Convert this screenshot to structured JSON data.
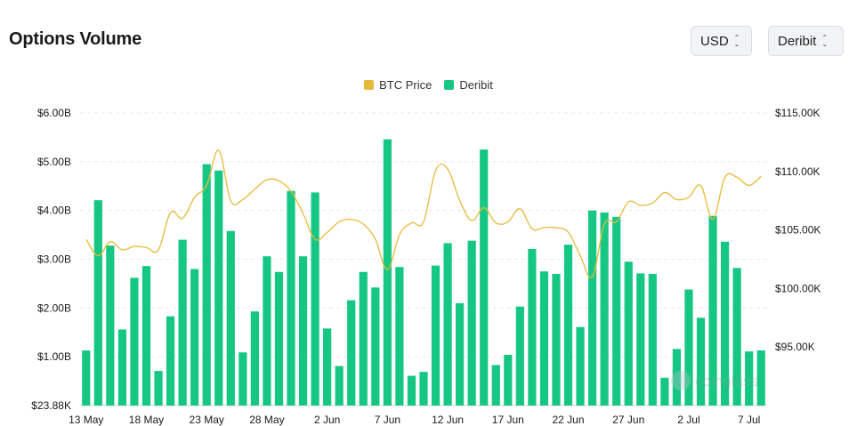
{
  "header": {
    "title": "Options Volume",
    "currency_select": "USD",
    "exchange_select": "Deribit"
  },
  "colors": {
    "bar": "#16c784",
    "line": "#e7b93a",
    "grid": "#e6e8eb",
    "axis_text": "#1a1a1a"
  },
  "watermark": "coinglass",
  "chart_data": {
    "type": "bar",
    "legend": [
      {
        "name": "BTC Price",
        "color": "#e7b93a"
      },
      {
        "name": "Deribit",
        "color": "#16c784"
      }
    ],
    "y_left_ticks": [
      "$23.88K",
      "$1.00B",
      "$2.00B",
      "$3.00B",
      "$4.00B",
      "$5.00B",
      "$6.00B"
    ],
    "y_left_range": [
      0,
      6000000000
    ],
    "y_right_ticks": [
      "$95.00K",
      "$100.00K",
      "$105.00K",
      "$110.00K",
      "$115.00K"
    ],
    "y_right_range": [
      90000,
      115000
    ],
    "x_tick_labels": [
      "13 May",
      "18 May",
      "23 May",
      "28 May",
      "2 Jun",
      "7 Jun",
      "12 Jun",
      "17 Jun",
      "22 Jun",
      "27 Jun",
      "2 Jul",
      "7 Jul"
    ],
    "x_tick_every": 5,
    "series": [
      {
        "name": "Deribit",
        "type": "bar",
        "values": [
          1.13,
          4.21,
          3.28,
          1.56,
          2.62,
          2.86,
          0.71,
          1.83,
          3.4,
          2.8,
          4.95,
          4.82,
          3.58,
          1.09,
          1.93,
          3.06,
          2.74,
          4.4,
          3.06,
          4.37,
          1.58,
          0.81,
          2.16,
          2.74,
          2.42,
          5.46,
          2.84,
          0.61,
          0.69,
          2.87,
          3.33,
          2.1,
          3.38,
          5.25,
          0.83,
          1.04,
          2.03,
          3.21,
          2.75,
          2.7,
          3.3,
          1.61,
          4.0,
          3.96,
          3.87,
          2.95,
          2.71,
          2.7,
          0.57,
          1.16,
          2.38,
          1.8,
          3.89,
          3.36,
          2.82,
          1.11,
          1.13
        ]
      },
      {
        "name": "BTC Price",
        "type": "line",
        "values": [
          104200,
          102800,
          104000,
          103300,
          103600,
          103500,
          103300,
          106500,
          106000,
          107800,
          108800,
          111800,
          107500,
          107600,
          108500,
          109300,
          109200,
          108300,
          106400,
          104200,
          104800,
          105700,
          105900,
          105500,
          104200,
          101600,
          104600,
          105600,
          105700,
          110100,
          110200,
          107500,
          105800,
          106900,
          105600,
          105700,
          106800,
          105100,
          105200,
          105200,
          104800,
          102800,
          101000,
          105500,
          105700,
          107400,
          107100,
          107300,
          108200,
          107600,
          107800,
          108800,
          105900,
          109500,
          109500,
          108800,
          109600
        ]
      }
    ],
    "bar_units": "B USD"
  }
}
